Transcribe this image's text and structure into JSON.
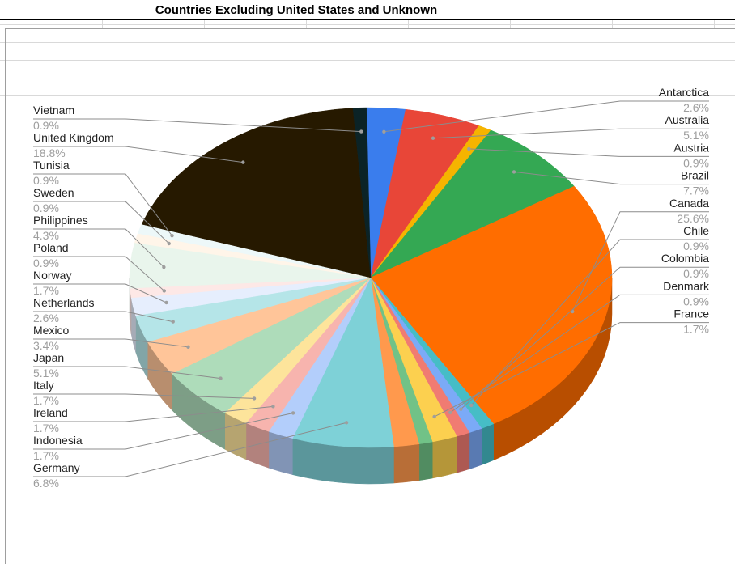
{
  "chart_data": {
    "type": "pie",
    "title": "Countries Excluding United States and Unknown",
    "slices": [
      {
        "label": "Antarctica",
        "value": 2.6,
        "pct": "2.6%",
        "color": "#3a7ded",
        "side": "right"
      },
      {
        "label": "Australia",
        "value": 5.1,
        "pct": "5.1%",
        "color": "#e84638",
        "side": "right"
      },
      {
        "label": "Austria",
        "value": 0.9,
        "pct": "0.9%",
        "color": "#f5b400",
        "side": "right"
      },
      {
        "label": "Brazil",
        "value": 7.7,
        "pct": "7.7%",
        "color": "#34a853",
        "side": "right"
      },
      {
        "label": "Canada",
        "value": 25.6,
        "pct": "25.6%",
        "color": "#ff6d00",
        "side": "right"
      },
      {
        "label": "Chile",
        "value": 0.9,
        "pct": "0.9%",
        "color": "#46bdc6",
        "side": "right"
      },
      {
        "label": "Colombia",
        "value": 0.9,
        "pct": "0.9%",
        "color": "#7baaf7",
        "side": "right"
      },
      {
        "label": "Denmark",
        "value": 0.9,
        "pct": "0.9%",
        "color": "#f07b72",
        "side": "right"
      },
      {
        "label": "France",
        "value": 1.7,
        "pct": "1.7%",
        "color": "#fcd04f",
        "side": "right"
      },
      {
        "label": "",
        "value": 0.9,
        "pct": "",
        "color": "#71c287",
        "side": "none"
      },
      {
        "label": "",
        "value": 1.7,
        "pct": "",
        "color": "#ff994d",
        "side": "none"
      },
      {
        "label": "Germany",
        "value": 6.8,
        "pct": "6.8%",
        "color": "#7ed1d7",
        "side": "left"
      },
      {
        "label": "Indonesia",
        "value": 1.7,
        "pct": "1.7%",
        "color": "#b3cefb",
        "side": "left"
      },
      {
        "label": "Ireland",
        "value": 1.7,
        "pct": "1.7%",
        "color": "#f7b4ae",
        "side": "left"
      },
      {
        "label": "Italy",
        "value": 1.7,
        "pct": "1.7%",
        "color": "#fde49b",
        "side": "left"
      },
      {
        "label": "Japan",
        "value": 5.1,
        "pct": "5.1%",
        "color": "#aedcba",
        "side": "left"
      },
      {
        "label": "Mexico",
        "value": 3.4,
        "pct": "3.4%",
        "color": "#ffc599",
        "side": "left"
      },
      {
        "label": "Netherlands",
        "value": 2.6,
        "pct": "2.6%",
        "color": "#b5e5e8",
        "side": "left"
      },
      {
        "label": "Norway",
        "value": 1.7,
        "pct": "1.7%",
        "color": "#e6eefd",
        "side": "left"
      },
      {
        "label": "Poland",
        "value": 0.9,
        "pct": "0.9%",
        "color": "#fde8e6",
        "side": "left"
      },
      {
        "label": "Philippines",
        "value": 4.3,
        "pct": "4.3%",
        "color": "#e9f5ec",
        "side": "left"
      },
      {
        "label": "Sweden",
        "value": 0.9,
        "pct": "0.9%",
        "color": "#fff5e9",
        "side": "left"
      },
      {
        "label": "Tunisia",
        "value": 0.9,
        "pct": "0.9%",
        "color": "#edf8f9",
        "side": "left"
      },
      {
        "label": "United Kingdom",
        "value": 18.8,
        "pct": "18.8%",
        "color": "#261900",
        "side": "left"
      },
      {
        "label": "Vietnam",
        "value": 0.9,
        "pct": "0.9%",
        "color": "#0b2326",
        "side": "left"
      }
    ],
    "legend": "none",
    "label_style": "callouts with name and percentage"
  }
}
